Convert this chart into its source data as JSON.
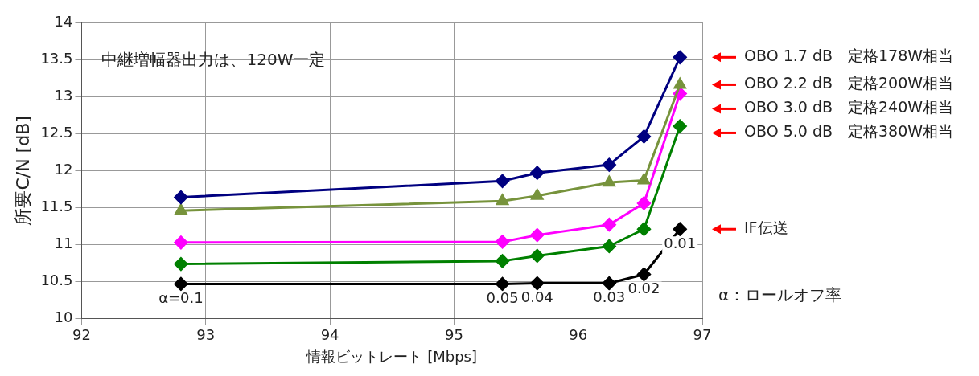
{
  "chart_data": {
    "type": "line",
    "xlabel": "情報ビットレート [Mbps]",
    "ylabel": "所要C/N [dB]",
    "xlim": [
      92,
      97
    ],
    "xticks": [
      92,
      93,
      94,
      95,
      96,
      97
    ],
    "ylim": [
      10,
      14
    ],
    "yticks": [
      10,
      10.5,
      11,
      11.5,
      12,
      12.5,
      13,
      13.5,
      14
    ],
    "grid": true,
    "legend": false,
    "marker": "diamond",
    "x": [
      92.8,
      95.39,
      95.67,
      96.25,
      96.53,
      96.82
    ],
    "series": [
      {
        "name": "OBO 1.7 dB　定格178W相当",
        "color": "#000080",
        "values": [
          11.64,
          11.86,
          11.97,
          12.08,
          12.46,
          13.53
        ]
      },
      {
        "name": "OBO 2.2 dB　定格200W相当",
        "color": "#77933c",
        "marker": "triangle",
        "values": [
          11.46,
          11.59,
          11.66,
          11.84,
          11.87,
          13.16
        ]
      },
      {
        "name": "OBO 3.0 dB　定格240W相当",
        "color": "#ff00ff",
        "values": [
          11.03,
          11.04,
          11.13,
          11.27,
          11.56,
          13.04
        ]
      },
      {
        "name": "OBO 5.0 dB　定格380W相当",
        "color": "#008000",
        "values": [
          10.74,
          10.78,
          10.85,
          10.98,
          11.21,
          12.6
        ]
      },
      {
        "name": "IF伝送",
        "color": "#000000",
        "values": [
          10.47,
          10.47,
          10.48,
          10.48,
          10.6,
          11.21
        ]
      }
    ],
    "annotations": [
      "中継増幅器出力は、120W一定",
      "α：ロールオフ率",
      {
        "text": "α=0.1",
        "x": 92.8,
        "y": 10.47
      },
      {
        "text": "0.05",
        "x": 95.39,
        "y": 10.47
      },
      {
        "text": "0.04",
        "x": 95.67,
        "y": 10.48
      },
      {
        "text": "0.03",
        "x": 96.25,
        "y": 10.48
      },
      {
        "text": "0.02",
        "x": 96.53,
        "y": 10.6
      },
      {
        "text": "0.01",
        "x": 96.82,
        "y": 11.21
      }
    ]
  }
}
